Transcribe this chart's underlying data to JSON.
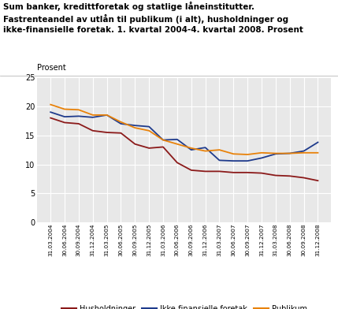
{
  "title_line1": "Sum banker, kredittforetak og statlige låneinstitutter.",
  "title_line2": "Fastrenteandel av utlån til publikum (i alt), husholdninger og",
  "title_line3": "ikke-finansielle foretak. 1. kvartal 2004-4. kvartal 2008. Prosent",
  "ylabel": "Prosent",
  "ylim": [
    0,
    25
  ],
  "yticks": [
    0,
    5,
    10,
    15,
    20,
    25
  ],
  "x_labels": [
    "31.03.2004",
    "30.06.2004",
    "30.09.2004",
    "31.12.2004",
    "31.03.2005",
    "30.06.2005",
    "30.09.2005",
    "31.12.2005",
    "31.03.2006",
    "30.06.2006",
    "30.09.2006",
    "31.12.2006",
    "31.03.2007",
    "30.06.2007",
    "30.09.2007",
    "31.12.2007",
    "31.03.2008",
    "30.06.2008",
    "30.09.2008",
    "31.12.2008"
  ],
  "husholdninger": [
    18.0,
    17.2,
    17.0,
    15.8,
    15.5,
    15.4,
    13.5,
    12.8,
    13.0,
    10.3,
    9.0,
    8.8,
    8.8,
    8.6,
    8.6,
    8.5,
    8.1,
    8.0,
    7.7,
    7.2
  ],
  "ikke_finansielle": [
    19.0,
    18.2,
    18.3,
    18.1,
    18.5,
    17.0,
    16.7,
    16.5,
    14.2,
    14.3,
    12.5,
    12.9,
    10.7,
    10.6,
    10.6,
    11.1,
    11.8,
    11.9,
    12.3,
    13.8
  ],
  "publikum": [
    20.3,
    19.5,
    19.4,
    18.5,
    18.5,
    17.3,
    16.3,
    15.8,
    14.2,
    13.5,
    12.8,
    12.3,
    12.5,
    11.8,
    11.7,
    12.0,
    11.9,
    11.9,
    12.0,
    12.0
  ],
  "color_husholdninger": "#8B1A1A",
  "color_ikke_finansielle": "#1F3B8C",
  "color_publikum": "#E8820A",
  "legend_labels": [
    "Husholdninger",
    "Ikke-finansielle foretak",
    "Publikum"
  ],
  "plot_bg_color": "#e8e8e8",
  "fig_bg_color": "#ffffff",
  "grid_color": "#ffffff"
}
